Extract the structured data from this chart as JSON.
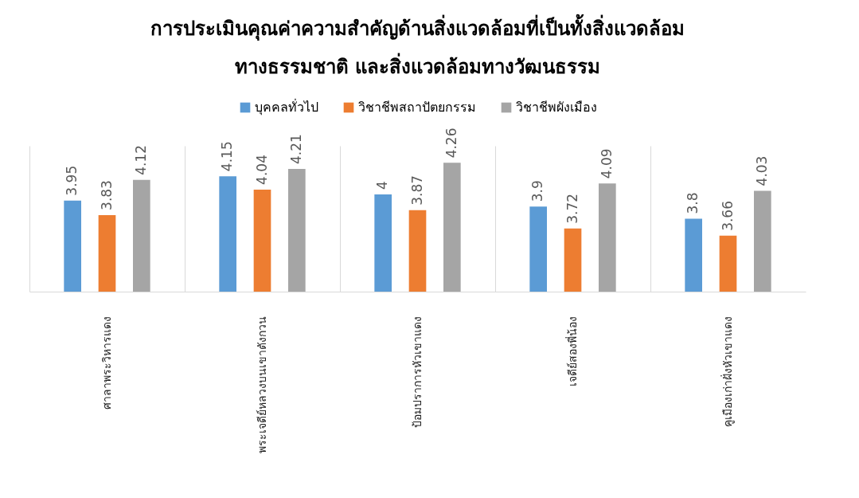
{
  "chart_data": {
    "type": "bar",
    "title": "การประเมินคุณค่าความสำคัญด้านสิ่งแวดล้อมที่เป็นทั้งสิ่งแวดล้อม\nทางธรรมชาติ และสิ่งแวดล้อมทางวัฒนธรรม",
    "categories": [
      "ศาลาพระวิหารแดง",
      "พระเจดีย์หลวงบนเขาตังกวน",
      "ป้อมปราการหัวเขาแดง",
      "เจดีย์สองพี่น้อง",
      "คูเมืองเก่าฝั่งหัวเขาแดง"
    ],
    "series": [
      {
        "name": "บุคคลทั่วไป",
        "color": "#5b9bd5",
        "values": [
          3.95,
          4.15,
          4,
          3.9,
          3.8
        ]
      },
      {
        "name": "วิชาชีพสถาปัตยกรรม",
        "color": "#ed7d31",
        "values": [
          3.83,
          4.04,
          3.87,
          3.72,
          3.66
        ]
      },
      {
        "name": "วิชาชีพผังเมือง",
        "color": "#a5a5a5",
        "values": [
          4.12,
          4.21,
          4.26,
          4.09,
          4.03
        ]
      }
    ],
    "ylim": [
      3.2,
      4.4
    ],
    "data_labels": true,
    "grid": "x",
    "legend": "top"
  }
}
